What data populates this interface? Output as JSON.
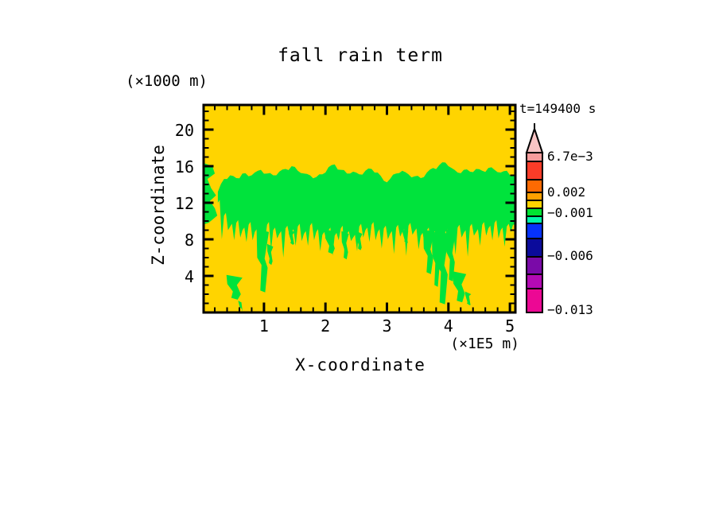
{
  "chart_data": {
    "type": "heatmap",
    "title": "fall rain term",
    "time_label": "t=149400 s",
    "xlabel": "X-coordinate",
    "ylabel": "Z-coordinate",
    "x_unit_label": "(×1E5 m)",
    "y_unit_label": "(×1000 m)",
    "xlim": [
      0,
      5.1
    ],
    "ylim": [
      0,
      22.7
    ],
    "x_ticks": [
      1,
      2,
      3,
      4,
      5
    ],
    "y_ticks": [
      4,
      8,
      12,
      16,
      20
    ],
    "x_minor_step": 0.2,
    "y_minor_step": 1,
    "grid": false,
    "field_colors": {
      "near_zero_value_color": "#ffd400",
      "slightly_negative_value_color": "#00e33c"
    },
    "colorbar": {
      "pointer_color": "#f8c4c4",
      "segments": [
        {
          "color": "#f89c9c",
          "h": 11
        },
        {
          "color": "#fb3c28",
          "h": 23
        },
        {
          "color": "#fd6a02",
          "h": 16
        },
        {
          "color": "#ffa000",
          "h": 10
        },
        {
          "color": "#ffd400",
          "h": 10
        },
        {
          "color": "#00e432",
          "h": 10
        },
        {
          "color": "#00f8a8",
          "h": 9
        },
        {
          "color": "#0632fc",
          "h": 19
        },
        {
          "color": "#0b0b9b",
          "h": 23
        },
        {
          "color": "#7a0aa8",
          "h": 22
        },
        {
          "color": "#b40ab4",
          "h": 18
        },
        {
          "color": "#ec0894",
          "h": 30
        }
      ],
      "labels": [
        {
          "text": "6.7e−3",
          "offset": 5
        },
        {
          "text": "0.002",
          "offset": 50
        },
        {
          "text": "−0.001",
          "offset": 76
        },
        {
          "text": "−0.006",
          "offset": 130
        },
        {
          "text": "−0.013",
          "offset": 198
        }
      ]
    },
    "band": {
      "x_start": 0.25,
      "x_step": 0.1,
      "top": [
        13.2,
        14.6,
        15.0,
        14.7,
        15.2,
        14.9,
        15.3,
        15.6,
        15.2,
        15.0,
        15.4,
        15.7,
        16.0,
        15.5,
        15.2,
        15.0,
        14.8,
        15.1,
        15.9,
        16.2,
        15.6,
        15.2,
        15.4,
        15.1,
        15.5,
        15.7,
        15.3,
        14.4,
        14.6,
        15.2,
        15.5,
        15.1,
        14.9,
        14.7,
        15.3,
        15.8,
        16.1,
        16.4,
        15.8,
        15.3,
        15.6,
        15.4,
        15.7,
        15.5,
        15.8,
        15.6,
        15.3,
        15.5,
        15.0
      ],
      "bottom": [
        12.0,
        10.6,
        9.4,
        9.8,
        9.0,
        9.6,
        8.8,
        8.4,
        9.6,
        9.0,
        8.6,
        9.2,
        8.8,
        9.4,
        8.6,
        9.5,
        8.8,
        8.5,
        9.0,
        8.4,
        9.2,
        8.6,
        8.2,
        9.4,
        9.0,
        9.6,
        8.8,
        9.2,
        8.6,
        9.3,
        8.8,
        9.5,
        8.9,
        8.4,
        9.0,
        8.6,
        8.2,
        8.8,
        8.5,
        9.3,
        8.7,
        9.4,
        8.8,
        9.6,
        9.2,
        9.8,
        9.0,
        9.4,
        9.6
      ]
    },
    "left_patch": [
      [
        0,
        16.4
      ],
      [
        0.16,
        16.0
      ],
      [
        0.2,
        15.2
      ],
      [
        0.08,
        14.6
      ],
      [
        0.14,
        13.6
      ],
      [
        0.22,
        12.8
      ],
      [
        0.12,
        12.2
      ],
      [
        0.2,
        11.4
      ],
      [
        0.24,
        10.6
      ],
      [
        0.1,
        9.8
      ],
      [
        0,
        9.6
      ]
    ],
    "streaks": [
      {
        "x": 0.52,
        "top": 3.8,
        "bottom": 1.4,
        "w": 0.13
      },
      {
        "x": 0.62,
        "top": 1.0,
        "bottom": 0.4,
        "w": 0.04
      },
      {
        "x": 0.98,
        "top": 8.8,
        "bottom": 2.2,
        "w": 0.1
      },
      {
        "x": 1.1,
        "top": 7.2,
        "bottom": 5.2,
        "w": 0.05
      },
      {
        "x": 1.45,
        "top": 8.8,
        "bottom": 7.4,
        "w": 0.05
      },
      {
        "x": 2.08,
        "top": 8.8,
        "bottom": 6.4,
        "w": 0.09
      },
      {
        "x": 2.32,
        "top": 8.6,
        "bottom": 5.8,
        "w": 0.06
      },
      {
        "x": 2.55,
        "top": 8.6,
        "bottom": 6.8,
        "w": 0.05
      },
      {
        "x": 3.3,
        "top": 8.8,
        "bottom": 7.6,
        "w": 0.05
      },
      {
        "x": 3.68,
        "top": 8.8,
        "bottom": 4.2,
        "w": 0.09
      },
      {
        "x": 3.8,
        "top": 8.6,
        "bottom": 2.8,
        "w": 0.07
      },
      {
        "x": 3.9,
        "top": 8.6,
        "bottom": 0.9,
        "w": 0.11
      },
      {
        "x": 4.04,
        "top": 8.8,
        "bottom": 3.4,
        "w": 0.08
      },
      {
        "x": 4.18,
        "top": 4.2,
        "bottom": 1.1,
        "w": 0.11
      },
      {
        "x": 4.32,
        "top": 2.0,
        "bottom": 0.8,
        "w": 0.05
      }
    ]
  }
}
